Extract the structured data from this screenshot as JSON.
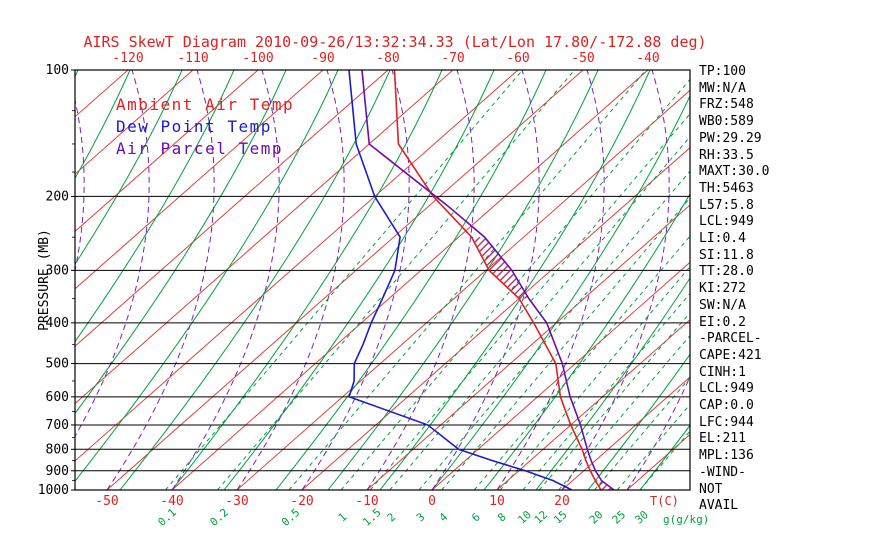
{
  "title": "AIRS SkewT Diagram 2010-09-26/13:32:34.33 (Lat/Lon 17.80/-172.88 deg)",
  "colors": {
    "temp": "#dd2222",
    "dewpoint": "#1c1ccd",
    "parcel": "#6a0dad",
    "isotherm": "#e04040",
    "adiabat": "#00a040",
    "mixing": "#00a040",
    "moist": "#7a1fc0",
    "axis": "#000000",
    "hatch": "#aa2255"
  },
  "legend": [
    {
      "id": "ambient",
      "label": "Ambient Air Temp",
      "color_key": "temp"
    },
    {
      "id": "dewpoint",
      "label": "Dew Point Temp",
      "color_key": "dewpoint"
    },
    {
      "id": "parcel",
      "label": "Air Parcel Temp",
      "color_key": "parcel"
    }
  ],
  "axes": {
    "y_label": "PRESSURE (MB)",
    "pressure_ticks": [
      100,
      200,
      300,
      400,
      500,
      600,
      700,
      800,
      900,
      1000
    ],
    "top_temp_ticks": [
      -120,
      -110,
      -100,
      -90,
      -80,
      -70,
      -60,
      -50,
      -40
    ],
    "bottom_temp_ticks": [
      -50,
      -40,
      -30,
      -20,
      -10,
      0,
      10,
      20
    ],
    "temp_unit_label": "T(C)",
    "mixing_ratio_labels": [
      0.1,
      0.2,
      0.5,
      1,
      1.5,
      2,
      3,
      4,
      6,
      8,
      10,
      12,
      15,
      20,
      25,
      30
    ],
    "mixing_td_at_1000mb": [
      -41,
      -33,
      -22,
      -14,
      -9.5,
      -6.5,
      -2,
      1.5,
      6.5,
      10.5,
      14,
      16.5,
      19.5,
      25,
      28.5,
      32
    ],
    "mixing_unit_label": "g(g/kg)"
  },
  "stats": [
    "TP:100",
    "MW:N/A",
    "FRZ:548",
    "WB0:589",
    "PW:29.29",
    "RH:33.5",
    "MAXT:30.0",
    "TH:5463",
    "L57:5.8",
    "LCL:949",
    "LI:0.4",
    "SI:11.8",
    "TT:28.0",
    "KI:272",
    "SW:N/A",
    "EI:0.2",
    "-PARCEL-",
    "CAPE:421",
    "CINH:1",
    "LCL:949",
    "CAP:0.0",
    "LFC:944",
    "EL:211",
    "MPL:136",
    "-WIND-",
    "NOT",
    "AVAIL"
  ],
  "chart_data": {
    "type": "line",
    "title": "AIRS SkewT Diagram 2010-09-26/13:32:34.33 (Lat/Lon 17.80/-172.88 deg)",
    "x_axis": {
      "label": "T(C)",
      "skewed": true,
      "top_ticks": [
        -120,
        -110,
        -100,
        -90,
        -80,
        -70,
        -60,
        -50,
        -40
      ],
      "bottom_ticks": [
        -50,
        -40,
        -30,
        -20,
        -10,
        0,
        10,
        20
      ]
    },
    "y_axis": {
      "label": "PRESSURE (MB)",
      "scale": "log",
      "range": [
        100,
        1000
      ]
    },
    "grid": "skewt-background (isotherms, adiabats, moist adiabats, mixing-ratio lines)",
    "legend_position": "upper-left-inside",
    "series": [
      {
        "name": "Ambient Air Temp",
        "color_key": "temp",
        "points_p_t": [
          [
            1000,
            26
          ],
          [
            950,
            23.5
          ],
          [
            900,
            21
          ],
          [
            850,
            18.5
          ],
          [
            800,
            16
          ],
          [
            700,
            10
          ],
          [
            600,
            3.5
          ],
          [
            500,
            -3
          ],
          [
            400,
            -13.5
          ],
          [
            350,
            -20
          ],
          [
            300,
            -29.5
          ],
          [
            250,
            -38
          ],
          [
            200,
            -51
          ],
          [
            150,
            -65.5
          ],
          [
            100,
            -79
          ]
        ]
      },
      {
        "name": "Dew Point Temp",
        "color_key": "dewpoint",
        "points_p_t": [
          [
            1000,
            21.5
          ],
          [
            950,
            17
          ],
          [
            900,
            11
          ],
          [
            850,
            4
          ],
          [
            800,
            -3
          ],
          [
            700,
            -12
          ],
          [
            600,
            -29
          ],
          [
            550,
            -31
          ],
          [
            500,
            -34
          ],
          [
            450,
            -36
          ],
          [
            400,
            -38.5
          ],
          [
            350,
            -41
          ],
          [
            300,
            -44
          ],
          [
            250,
            -49
          ],
          [
            200,
            -60
          ],
          [
            150,
            -72
          ],
          [
            100,
            -86
          ]
        ]
      },
      {
        "name": "Air Parcel Temp",
        "color_key": "parcel",
        "points_p_t": [
          [
            1000,
            28
          ],
          [
            949,
            24.4
          ],
          [
            900,
            21.8
          ],
          [
            850,
            19.3
          ],
          [
            800,
            16.8
          ],
          [
            700,
            11.5
          ],
          [
            600,
            5
          ],
          [
            500,
            -2
          ],
          [
            400,
            -11.5
          ],
          [
            350,
            -18.5
          ],
          [
            300,
            -26
          ],
          [
            250,
            -36
          ],
          [
            211,
            -47
          ],
          [
            150,
            -70
          ],
          [
            100,
            -84
          ]
        ]
      }
    ],
    "hatch_regions_mb": [
      [
        935,
        1000
      ],
      [
        240,
        370
      ]
    ]
  }
}
